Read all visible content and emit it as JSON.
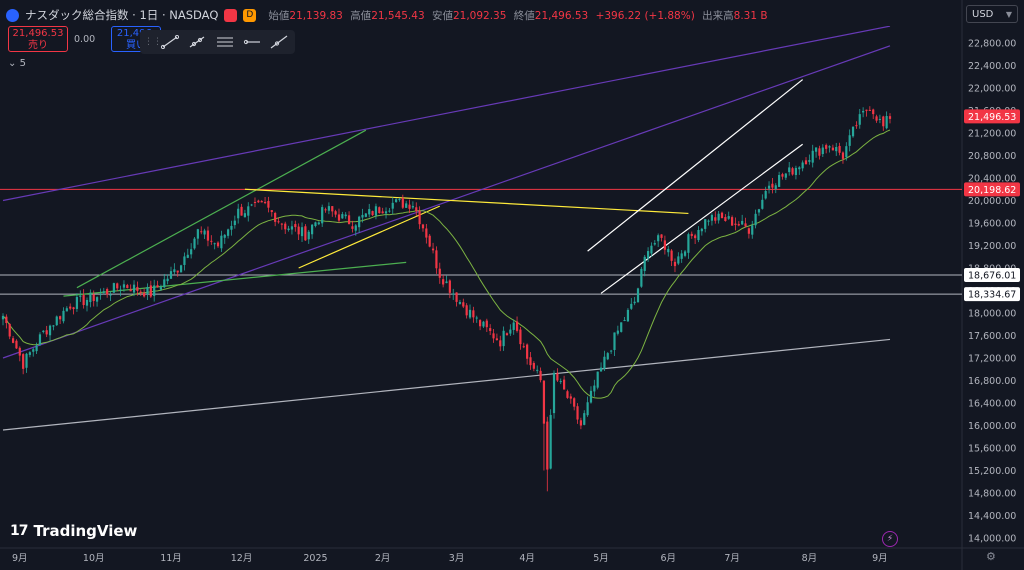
{
  "header": {
    "symbol_title": "ナスダック総合指数 · 1日 · NASDAQ",
    "badge_red": "",
    "badge_d": "D",
    "open_label": "始値",
    "open_value": "21,139.83",
    "high_label": "高値",
    "high_value": "21,545.43",
    "low_label": "安値",
    "low_value": "21,092.35",
    "close_label": "終値",
    "close_value": "21,496.53",
    "change_value": "+396.22 (+1.88%)",
    "volume_label": "出来高",
    "volume_value": "8.31 B"
  },
  "trade": {
    "sell_price": "21,496.53",
    "sell_label": "売り",
    "spread": "0.00",
    "buy_price": "21,496.",
    "buy_label": "買い"
  },
  "indicator_count": "5",
  "currency": "USD",
  "branding": "TradingView",
  "colors": {
    "background": "#131722",
    "up": "#26a69a",
    "down": "#f23645",
    "ma": "#7cb342",
    "channel_purple": "#673ab7",
    "channel_green": "#4caf50",
    "trend_yellow": "#ffeb3b",
    "resistance_red": "#f23645",
    "support_gray": "#b2b5be",
    "channel_white": "#ffffff"
  },
  "chart_data": {
    "type": "candlestick",
    "x_tick_labels": [
      "9月",
      "10月",
      "11月",
      "12月",
      "2025",
      "2月",
      "3月",
      "4月",
      "5月",
      "6月",
      "7月",
      "8月",
      "9月"
    ],
    "y_tick_labels": [
      "22,800.00",
      "22,400.00",
      "22,000.00",
      "21,600.00",
      "21,200.00",
      "20,800.00",
      "20,400.00",
      "20,000.00",
      "19,600.00",
      "19,200.00",
      "18,800.00",
      "18,400.00",
      "18,000.00",
      "17,600.00",
      "17,200.00",
      "16,800.00",
      "16,400.00",
      "16,000.00",
      "15,600.00",
      "15,200.00",
      "14,800.00",
      "14,400.00",
      "14,000.00"
    ],
    "ylim": [
      13900,
      23200
    ],
    "price_labels": [
      {
        "text": "21,496.53",
        "value": 21496.53,
        "color": "#f23645",
        "text_color": "#ffffff"
      },
      {
        "text": "20,198.62",
        "value": 20198.62,
        "color": "#f23645",
        "text_color": "#ffffff"
      },
      {
        "text": "18,676.01",
        "value": 18676.01,
        "color": "#ffffff",
        "text_color": "#131722"
      },
      {
        "text": "18,334.67",
        "value": 18334.67,
        "color": "#ffffff",
        "text_color": "#131722"
      }
    ],
    "horizontal_lines": [
      {
        "value": 20198.62,
        "color": "#f23645"
      },
      {
        "value": 18676.01,
        "color": "#b2b5be"
      },
      {
        "value": 18334.67,
        "color": "#b2b5be"
      }
    ],
    "keypoints": [
      {
        "i": 0,
        "v": 17950
      },
      {
        "i": 6,
        "v": 17100
      },
      {
        "i": 12,
        "v": 17650
      },
      {
        "i": 20,
        "v": 18150
      },
      {
        "i": 28,
        "v": 18300
      },
      {
        "i": 36,
        "v": 18500
      },
      {
        "i": 44,
        "v": 18350
      },
      {
        "i": 52,
        "v": 18800
      },
      {
        "i": 58,
        "v": 19450
      },
      {
        "i": 64,
        "v": 19200
      },
      {
        "i": 70,
        "v": 19800
      },
      {
        "i": 78,
        "v": 19900
      },
      {
        "i": 84,
        "v": 19550
      },
      {
        "i": 90,
        "v": 19400
      },
      {
        "i": 96,
        "v": 19850
      },
      {
        "i": 104,
        "v": 19600
      },
      {
        "i": 110,
        "v": 19800
      },
      {
        "i": 116,
        "v": 19950
      },
      {
        "i": 122,
        "v": 19950
      },
      {
        "i": 126,
        "v": 19400
      },
      {
        "i": 130,
        "v": 18700
      },
      {
        "i": 136,
        "v": 18200
      },
      {
        "i": 142,
        "v": 17800
      },
      {
        "i": 148,
        "v": 17500
      },
      {
        "i": 152,
        "v": 17900
      },
      {
        "i": 156,
        "v": 17200
      },
      {
        "i": 160,
        "v": 16800
      },
      {
        "i": 162,
        "v": 15300
      },
      {
        "i": 164,
        "v": 16900
      },
      {
        "i": 168,
        "v": 16500
      },
      {
        "i": 172,
        "v": 16000
      },
      {
        "i": 176,
        "v": 16700
      },
      {
        "i": 180,
        "v": 17300
      },
      {
        "i": 184,
        "v": 17800
      },
      {
        "i": 188,
        "v": 18200
      },
      {
        "i": 192,
        "v": 19200
      },
      {
        "i": 196,
        "v": 19300
      },
      {
        "i": 200,
        "v": 18900
      },
      {
        "i": 204,
        "v": 19300
      },
      {
        "i": 210,
        "v": 19700
      },
      {
        "i": 216,
        "v": 19650
      },
      {
        "i": 222,
        "v": 19500
      },
      {
        "i": 228,
        "v": 20300
      },
      {
        "i": 234,
        "v": 20500
      },
      {
        "i": 240,
        "v": 20800
      },
      {
        "i": 246,
        "v": 21000
      },
      {
        "i": 250,
        "v": 20800
      },
      {
        "i": 254,
        "v": 21350
      },
      {
        "i": 258,
        "v": 21700
      },
      {
        "i": 262,
        "v": 21300
      },
      {
        "i": 264,
        "v": 21500
      }
    ],
    "candle_count": 265,
    "ma_period": 20,
    "drawings": [
      {
        "kind": "purple-line",
        "points": [
          [
            0,
            17200
          ],
          [
            264,
            22750
          ]
        ]
      },
      {
        "kind": "purple-line",
        "points": [
          [
            0,
            20000
          ],
          [
            264,
            23100
          ]
        ]
      },
      {
        "kind": "green-line",
        "points": [
          [
            22,
            18450
          ],
          [
            108,
            21250
          ]
        ]
      },
      {
        "kind": "green-line",
        "points": [
          [
            18,
            18300
          ],
          [
            120,
            18900
          ]
        ]
      },
      {
        "kind": "yellow-line",
        "points": [
          [
            72,
            20200
          ],
          [
            204,
            19770
          ]
        ]
      },
      {
        "kind": "yellow-line",
        "points": [
          [
            88,
            18800
          ],
          [
            130,
            19900
          ]
        ]
      },
      {
        "kind": "gray-line",
        "points": [
          [
            0,
            15920
          ],
          [
            264,
            17530
          ]
        ]
      },
      {
        "kind": "white-line",
        "points": [
          [
            174,
            19100
          ],
          [
            238,
            22150
          ]
        ]
      },
      {
        "kind": "white-line",
        "points": [
          [
            178,
            18350
          ],
          [
            238,
            21000
          ]
        ]
      }
    ]
  }
}
